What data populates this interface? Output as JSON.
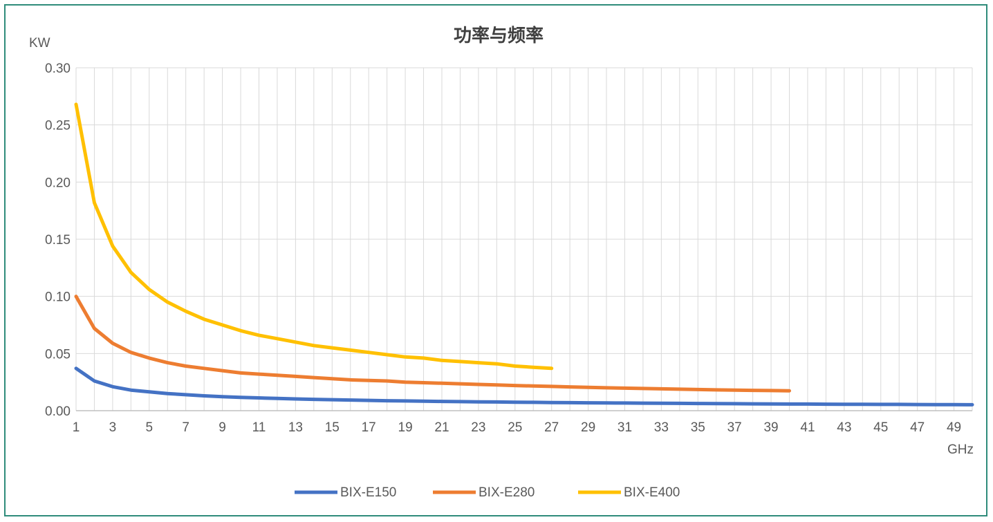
{
  "chart_data": {
    "type": "line",
    "title": "功率与频率",
    "ylabel": "KW",
    "xlabel": "GHz",
    "xlim": [
      1,
      50
    ],
    "ylim": [
      0,
      0.3
    ],
    "yticks": [
      "0.00",
      "0.05",
      "0.10",
      "0.15",
      "0.20",
      "0.25",
      "0.30"
    ],
    "xticks": [
      "1",
      "3",
      "5",
      "7",
      "9",
      "11",
      "13",
      "15",
      "17",
      "19",
      "21",
      "23",
      "25",
      "27",
      "29",
      "31",
      "33",
      "35",
      "37",
      "39",
      "41",
      "43",
      "45",
      "47",
      "49"
    ],
    "grid": true,
    "legend_position": "bottom",
    "series": [
      {
        "name": "BIX-E150",
        "color": "#4472c4",
        "x": [
          1,
          2,
          3,
          4,
          5,
          6,
          7,
          8,
          9,
          10,
          11,
          12,
          13,
          14,
          15,
          16,
          17,
          18,
          19,
          20,
          21,
          22,
          23,
          24,
          25,
          26,
          27,
          28,
          29,
          30,
          31,
          32,
          33,
          34,
          35,
          36,
          37,
          38,
          39,
          40,
          41,
          42,
          43,
          44,
          45,
          46,
          47,
          48,
          49,
          50
        ],
        "values": [
          0.037,
          0.026,
          0.021,
          0.018,
          0.0165,
          0.015,
          0.014,
          0.013,
          0.0123,
          0.0117,
          0.0112,
          0.0107,
          0.0103,
          0.0099,
          0.0096,
          0.0093,
          0.009,
          0.0087,
          0.0085,
          0.0083,
          0.0081,
          0.0079,
          0.0077,
          0.0076,
          0.0074,
          0.0073,
          0.0071,
          0.007,
          0.0069,
          0.0068,
          0.0067,
          0.0066,
          0.0065,
          0.0064,
          0.0063,
          0.0062,
          0.0061,
          0.006,
          0.0059,
          0.0058,
          0.0058,
          0.0057,
          0.0056,
          0.0056,
          0.0055,
          0.0055,
          0.0054,
          0.0053,
          0.0053,
          0.0052
        ]
      },
      {
        "name": "BIX-E280",
        "color": "#ed7d31",
        "x": [
          1,
          2,
          3,
          4,
          5,
          6,
          7,
          8,
          9,
          10,
          11,
          12,
          13,
          14,
          15,
          16,
          17,
          18,
          19,
          20,
          21,
          22,
          23,
          24,
          25,
          26,
          27,
          28,
          29,
          30,
          31,
          32,
          33,
          34,
          35,
          36,
          37,
          38,
          39,
          40
        ],
        "values": [
          0.1,
          0.072,
          0.059,
          0.051,
          0.046,
          0.042,
          0.039,
          0.037,
          0.035,
          0.033,
          0.032,
          0.031,
          0.03,
          0.029,
          0.028,
          0.027,
          0.0265,
          0.026,
          0.025,
          0.0245,
          0.024,
          0.0235,
          0.023,
          0.0225,
          0.022,
          0.0216,
          0.0212,
          0.0208,
          0.0204,
          0.02,
          0.0197,
          0.0194,
          0.0191,
          0.0188,
          0.0185,
          0.0182,
          0.018,
          0.0178,
          0.0176,
          0.0174
        ]
      },
      {
        "name": "BIX-E400",
        "color": "#ffc000",
        "x": [
          1,
          2,
          3,
          4,
          5,
          6,
          7,
          8,
          9,
          10,
          11,
          12,
          13,
          14,
          15,
          16,
          17,
          18,
          19,
          20,
          21,
          22,
          23,
          24,
          25,
          26,
          27
        ],
        "values": [
          0.268,
          0.182,
          0.144,
          0.121,
          0.106,
          0.095,
          0.087,
          0.08,
          0.075,
          0.07,
          0.066,
          0.063,
          0.06,
          0.057,
          0.055,
          0.053,
          0.051,
          0.049,
          0.047,
          0.046,
          0.044,
          0.043,
          0.042,
          0.041,
          0.039,
          0.038,
          0.037
        ]
      }
    ]
  }
}
